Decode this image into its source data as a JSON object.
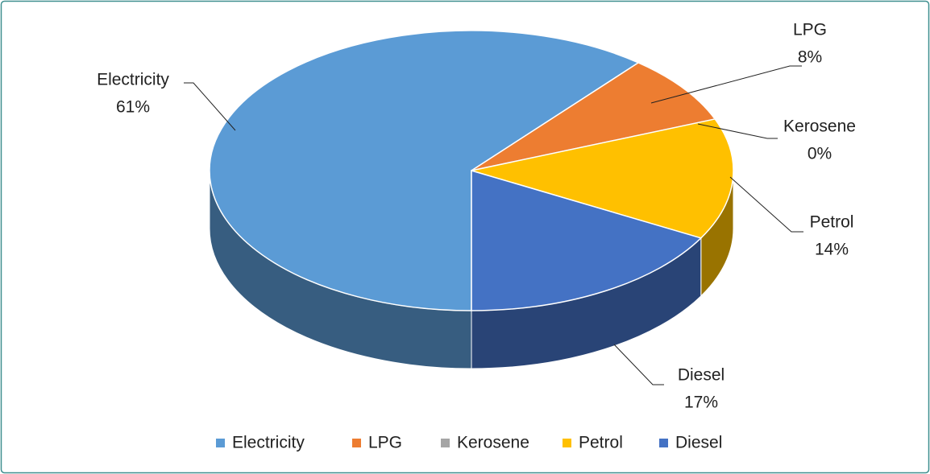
{
  "chart_data": {
    "type": "pie",
    "categories": [
      "Electricity",
      "LPG",
      "Kerosene",
      "Petrol",
      "Diesel"
    ],
    "values": [
      61,
      8,
      0,
      14,
      17
    ],
    "value_labels": [
      "61%",
      "8%",
      "0%",
      "14%",
      "17%"
    ],
    "colors": [
      "#5b9bd5",
      "#ed7d31",
      "#a5a5a5",
      "#ffc000",
      "#4472c4"
    ],
    "legend": "bottom"
  }
}
